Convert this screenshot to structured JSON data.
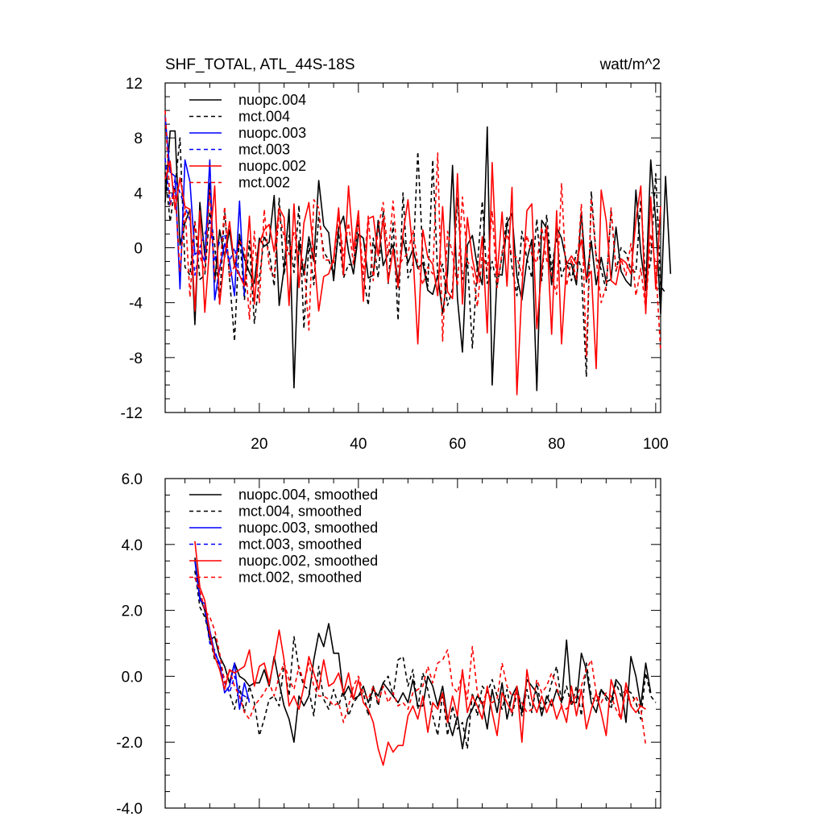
{
  "chart_data": [
    {
      "type": "line",
      "title": "SHF_TOTAL, ATL_44S-18S",
      "units": "watt/m^2",
      "xlabel": "",
      "ylabel": "",
      "xlim": [
        1,
        101
      ],
      "ylim": [
        -12,
        12
      ],
      "x_ticks": [
        20,
        40,
        60,
        80,
        100
      ],
      "x_tick_labels": [
        "20",
        "40",
        "60",
        "80",
        "100"
      ],
      "y_ticks": [
        12,
        8,
        4,
        0,
        -4,
        -8,
        -12
      ],
      "y_tick_labels": [
        "12",
        "8",
        "4",
        "0",
        "-4",
        "-8",
        "-12"
      ],
      "legend_position": "top-left",
      "series": [
        {
          "name": "nuopc.004",
          "color": "#000000",
          "dash": "solid",
          "x_start": 1,
          "values": [
            3.3,
            8.5,
            8.5,
            0.2,
            1.8,
            2.8,
            -5.6,
            3.3,
            -0.6,
            4.7,
            -2.5,
            1.3,
            -0.7,
            1.3,
            -1.4,
            0.8,
            -0.8,
            -1.8,
            -2.6,
            0.7,
            0.1,
            0.4,
            3.8,
            -4.2,
            -1.5,
            2.8,
            -10.2,
            0.5,
            -2.0,
            0.8,
            -1.0,
            4.9,
            1.6,
            1.1,
            -2.4,
            1.4,
            2.3,
            -0.3,
            -1.9,
            1.0,
            0.7,
            -2.2,
            -2.0,
            2.0,
            -1.3,
            -0.4,
            0.2,
            -2.5,
            0.7,
            -1.1,
            -0.1,
            -1.5,
            -1.1,
            -3.1,
            -3.4,
            -2.0,
            -4.8,
            -1.9,
            6.0,
            -3.7,
            -7.6,
            0.2,
            0.9,
            -1.4,
            -2.7,
            8.8,
            -10.0,
            -1.9,
            -2.0,
            1.8,
            2.5,
            -2.1,
            -3.8,
            -0.9,
            0.6,
            -10.4,
            2.0,
            1.4,
            -2.7,
            1.5,
            0.7,
            -1.1,
            -1.2,
            -2.7,
            2.6,
            -2.5,
            0.5,
            -2.7,
            -0.7,
            -2.5,
            -2.3,
            1.5,
            -1.7,
            -2.4,
            -2.8,
            4.2,
            -0.4,
            -3.1,
            6.4,
            2.0,
            -4.8,
            5.2,
            -1.9
          ]
        },
        {
          "name": "mct.004",
          "color": "#000000",
          "dash": "dashed",
          "x_start": 1,
          "values": [
            5.5,
            1.9,
            4.5,
            8.0,
            -1.4,
            -2.0,
            1.9,
            -2.3,
            -2.0,
            2.6,
            0.2,
            -4.1,
            2.8,
            -2.2,
            -6.8,
            1.1,
            -3.8,
            0.5,
            -5.5,
            -2.3,
            0.9,
            -0.3,
            -2.8,
            3.6,
            -2.0,
            0.9,
            -1.8,
            3.1,
            -5.9,
            0.3,
            -2.7,
            2.3,
            -0.3,
            -0.9,
            -1.9,
            1.1,
            -2.2,
            -1.2,
            -1.3,
            2.0,
            -2.1,
            -4.2,
            0.7,
            -2.2,
            2.7,
            -2.6,
            1.8,
            -5.3,
            4.0,
            -2.2,
            -1.2,
            7.0,
            -0.5,
            -2.8,
            6.4,
            -2.0,
            -1.2,
            -4.2,
            -3.0,
            3.6,
            -2.3,
            -0.8,
            -7.3,
            -1.3,
            3.4,
            -2.6,
            -1.0,
            -2.8,
            -0.6,
            2.2,
            -1.4,
            -3.5,
            1.2,
            -0.8,
            -2.2,
            2.1,
            -2.4,
            2.4,
            -1.6,
            0.8,
            -2.1,
            -1.0,
            -2.4,
            -0.2,
            -1.6,
            -9.4,
            4.1,
            -0.6,
            -1.6,
            -3.1,
            2.8,
            -1.7,
            0.0,
            -0.4,
            -1.6,
            -1.8,
            3.5,
            -2.5,
            -1.0,
            5.4,
            -2.8,
            -3.3
          ]
        },
        {
          "name": "nuopc.003",
          "color": "#0000ff",
          "dash": "solid",
          "x_start": 1,
          "values": [
            9.5,
            5.5,
            5.2,
            -3.0,
            6.4,
            4.8,
            -0.5,
            -0.2,
            -1.0,
            6.4,
            -3.8,
            -1.5,
            0.3,
            -1.0,
            -3.5,
            3.4,
            -3.5
          ]
        },
        {
          "name": "mct.003",
          "color": "#0000ff",
          "dash": "dashed",
          "x_start": 1,
          "values": [
            6.5,
            3.0,
            5.0,
            4.0,
            3.0,
            2.0,
            -2.0,
            0.0,
            1.0,
            2.0,
            -1.0,
            0.5,
            1.0,
            -1.0,
            0.0,
            -2.0,
            -2.5
          ]
        },
        {
          "name": "nuopc.002",
          "color": "#ff0000",
          "dash": "solid",
          "x_start": 1,
          "values": [
            5.0,
            6.3,
            2.8,
            5.1,
            3.0,
            2.8,
            -4.6,
            2.7,
            -4.7,
            0.2,
            4.5,
            -4.1,
            -0.6,
            1.9,
            -1.3,
            -2.0,
            -2.8,
            2.3,
            -4.1,
            0.3,
            1.3,
            1.7,
            -0.3,
            2.9,
            2.2,
            -4.2,
            3.2,
            -2.9,
            1.8,
            3.3,
            -0.4,
            -4.6,
            -2.1,
            -1.9,
            -0.8,
            2.9,
            -2.0,
            4.5,
            -0.2,
            2.7,
            -3.9,
            2.1,
            2.3,
            -0.6,
            2.1,
            -2.5,
            -0.1,
            -2.9,
            1.0,
            3.5,
            -0.3,
            -7.0,
            1.3,
            -0.7,
            -1.2,
            -3.5,
            3.0,
            -3.2,
            -3.7,
            5.4,
            -4.1,
            2.2,
            -0.8,
            -2.6,
            0.8,
            -6.2,
            6.2,
            -2.1,
            2.6,
            -2.8,
            4.4,
            -10.7,
            -3.0,
            2.7,
            3.2,
            -5.9,
            -1.5,
            1.5,
            -6.3,
            2.7,
            -7.0,
            -1.2,
            -0.6,
            -1.2,
            0.6,
            -2.3,
            -1.7,
            -8.8,
            4.2,
            2.0,
            -2.4,
            -2.7,
            -0.8,
            -1.1,
            -1.9,
            2.0,
            4.5,
            -4.8,
            3.7,
            -3.0,
            3.0
          ]
        },
        {
          "name": "mct.002",
          "color": "#ff0000",
          "dash": "dashed",
          "x_start": 1,
          "values": [
            10.0,
            3.1,
            4.2,
            -1.7,
            3.0,
            -3.6,
            1.8,
            -0.6,
            -1.7,
            4.2,
            -2.3,
            -1.9,
            3.0,
            -2.2,
            -1.3,
            0.5,
            -0.1,
            -5.2,
            1.2,
            -4.0,
            2.8,
            -1.4,
            -2.1,
            2.6,
            0.8,
            -0.5,
            1.1,
            -0.5,
            -1.0,
            -6.0,
            3.5,
            2.9,
            -0.9,
            -0.9,
            -1.1,
            2.3,
            -0.6,
            1.8,
            -1.2,
            2.1,
            -1.9,
            2.3,
            -2.4,
            1.4,
            3.3,
            -0.6,
            3.4,
            -1.4,
            -0.8,
            -0.4,
            1.3,
            -1.2,
            -2.7,
            -1.4,
            -1.9,
            6.9,
            -6.8,
            1.2,
            -0.5,
            -2.8,
            3.7,
            -1.0,
            -1.5,
            -4.3,
            -0.4,
            -1.6,
            2.7,
            -2.9,
            -0.3,
            1.0,
            -0.6,
            -0.7,
            -2.0,
            0.9,
            -0.5,
            -1.1,
            1.5,
            -0.9,
            -2.0,
            -3.4,
            4.7,
            -2.8,
            -0.8,
            -2.3,
            3.2,
            -7.9,
            3.6,
            -0.8,
            -4.0,
            -2.8,
            2.9,
            -1.6,
            -0.8,
            -2.0,
            0.3,
            -3.5,
            -1.5,
            -4.5,
            1.0,
            -1.3,
            -7.6
          ]
        }
      ]
    },
    {
      "type": "line",
      "title": "",
      "xlabel": "",
      "ylabel": "",
      "xlim": [
        1,
        101
      ],
      "ylim": [
        -4.0,
        6.0
      ],
      "x_ticks": [
        20,
        40,
        60,
        80,
        100
      ],
      "x_tick_labels": [],
      "y_ticks": [
        6.0,
        4.0,
        2.0,
        0.0,
        -2.0,
        -4.0
      ],
      "y_tick_labels": [
        "6.0",
        "4.0",
        "2.0",
        "0.0",
        "-2.0",
        "-4.0"
      ],
      "legend_position": "top-left",
      "series": [
        {
          "name": "nuopc.004, smoothed",
          "color": "#000000",
          "dash": "solid",
          "x_start": 7,
          "values": [
            3.6,
            2.4,
            2.0,
            1.1,
            1.2,
            0.6,
            0.3,
            -0.2,
            0.4,
            0.0,
            -0.1,
            -0.3,
            -0.2,
            -0.2,
            0.2,
            -0.3,
            0.6,
            -0.2,
            -0.9,
            -1.3,
            -2.0,
            -0.6,
            -0.9,
            -0.6,
            0.5,
            1.3,
            0.9,
            1.6,
            0.7,
            0.7,
            -0.6,
            -0.3,
            -0.7,
            -0.6,
            -0.3,
            -0.8,
            -0.4,
            -0.6,
            -0.2,
            -0.4,
            -0.6,
            -0.8,
            -0.5,
            -0.8,
            -0.1,
            -0.9,
            -0.9,
            0.0,
            -0.3,
            -0.9,
            -0.3,
            -1.3,
            -1.8,
            -1.2,
            -2.2,
            -1.3,
            -1.0,
            -0.6,
            -0.8,
            -1.6,
            -0.4,
            -1.1,
            -0.2,
            -1.3,
            -0.6,
            -0.3,
            -1.1,
            -0.1,
            -0.3,
            -0.5,
            -1.2,
            -0.6,
            -0.9,
            -0.4,
            -0.8,
            1.1,
            -0.8,
            -0.8,
            0.7,
            0.2,
            -0.8,
            -1.1,
            -0.4,
            -0.6,
            -0.8,
            -0.1,
            -0.3,
            -1.4,
            0.6,
            0.0,
            -0.9,
            0.4,
            -0.5
          ]
        },
        {
          "name": "mct.004, smoothed",
          "color": "#000000",
          "dash": "dashed",
          "x_start": 7,
          "values": [
            3.2,
            2.1,
            1.8,
            1.2,
            0.5,
            0.4,
            -0.1,
            -0.5,
            -1.0,
            -0.3,
            -1.1,
            -0.3,
            -0.8,
            -1.8,
            -1.3,
            -0.7,
            -0.6,
            -0.9,
            0.4,
            -0.6,
            1.2,
            0.2,
            -0.3,
            -0.4,
            -1.2,
            0.3,
            -0.7,
            -1.0,
            -0.4,
            -0.9,
            -0.4,
            -1.2,
            -0.8,
            -0.6,
            -0.5,
            -1.2,
            -0.3,
            -0.9,
            -0.2,
            0.0,
            -0.6,
            0.5,
            0.6,
            -0.3,
            0.2,
            -1.0,
            0.1,
            -0.4,
            -1.2,
            -1.8,
            -0.5,
            -1.8,
            -0.9,
            -1.6,
            -1.4,
            -2.2,
            -0.5,
            -1.2,
            -0.3,
            -0.5,
            -0.1,
            -0.6,
            -1.0,
            -0.4,
            -1.2,
            -0.5,
            -1.2,
            -0.4,
            -1.1,
            -0.2,
            -1.0,
            -0.8,
            -0.2,
            0.3,
            -0.8,
            -0.3,
            -0.9,
            -0.3,
            -1.2,
            0.4,
            -0.6,
            -0.8,
            -0.4,
            -0.7,
            -1.0,
            -0.2,
            -0.6,
            -0.4,
            -0.5,
            -0.8,
            -1.3,
            0.1,
            -0.6,
            -0.8
          ]
        },
        {
          "name": "nuopc.003, smoothed",
          "color": "#0000ff",
          "dash": "solid",
          "x_start": 7,
          "values": [
            3.5,
            2.3,
            2.2,
            1.4,
            0.7,
            0.4,
            -0.5,
            -0.3,
            0.4,
            -1.0,
            -0.2,
            -0.8
          ]
        },
        {
          "name": "mct.003, smoothed",
          "color": "#0000ff",
          "dash": "dashed",
          "x_start": 7,
          "values": [
            3.0,
            2.5,
            2.0,
            1.0,
            0.8,
            0.3,
            -0.2,
            -0.5,
            0.0,
            -0.5,
            -0.6,
            -0.7
          ]
        },
        {
          "name": "nuopc.002, smoothed",
          "color": "#ff0000",
          "dash": "solid",
          "x_start": 7,
          "values": [
            4.1,
            2.7,
            2.3,
            1.3,
            0.6,
            0.2,
            -0.4,
            0.2,
            0.1,
            0.2,
            0.3,
            0.8,
            -0.3,
            0.3,
            0.4,
            -0.2,
            0.5,
            1.4,
            0.5,
            -0.9,
            -0.6,
            -1.0,
            -0.3,
            0.6,
            0.1,
            -0.4,
            0.5,
            -0.3,
            -0.2,
            0.1,
            -0.5,
            0.1,
            -0.7,
            -0.1,
            -0.8,
            -1.0,
            -1.4,
            -2.2,
            -2.7,
            -2.0,
            -2.3,
            -2.1,
            -2.1,
            -1.2,
            -0.9,
            -1.3,
            -0.6,
            -1.7,
            -0.8,
            -1.0,
            -0.5,
            -1.4,
            -0.6,
            -1.2,
            0.2,
            -1.1,
            -0.6,
            -0.9,
            -1.3,
            -0.3,
            -1.1,
            -1.8,
            -0.5,
            -0.8,
            -1.1,
            -0.3,
            -2.0,
            0.2,
            -0.7,
            -1.1,
            -0.6,
            -1.1,
            -0.7,
            -1.3,
            -0.9,
            -1.4,
            -0.3,
            -1.2,
            -0.4,
            -1.6,
            -1.0,
            -0.5,
            -1.1,
            -1.8,
            -0.1,
            -0.6,
            -1.3,
            -0.2,
            -0.9,
            -1.1,
            -0.9,
            -1.0
          ]
        },
        {
          "name": "mct.002, smoothed",
          "color": "#ff0000",
          "dash": "dashed",
          "x_start": 7,
          "values": [
            3.0,
            2.6,
            2.0,
            1.8,
            1.4,
            0.7,
            -0.2,
            0.2,
            -0.3,
            -0.6,
            -1.1,
            -1.3,
            -0.9,
            -0.7,
            -0.5,
            -0.2,
            -0.6,
            0.0,
            0.4,
            -0.1,
            -0.4,
            0.3,
            -0.2,
            0.4,
            -0.3,
            -0.6,
            -0.6,
            -0.7,
            -0.9,
            -0.8,
            -1.4,
            -0.9,
            -0.3,
            0.0,
            -0.5,
            -0.7,
            -0.3,
            -0.8,
            -0.3,
            -0.8,
            -0.5,
            -0.9,
            -0.8,
            -1.0,
            -0.5,
            -0.4,
            -0.3,
            0.3,
            -0.2,
            0.4,
            0.5,
            0.8,
            -0.3,
            -0.5,
            0.1,
            -0.7,
            0.9,
            -0.5,
            -0.9,
            -0.4,
            -0.8,
            -0.7,
            0.4,
            -0.3,
            -0.6,
            -0.5,
            -0.8,
            -1.1,
            -1.0,
            -0.1,
            -0.5,
            -0.3,
            0.1,
            -0.3,
            -0.9,
            -1.0,
            -0.8,
            -0.6,
            -0.3,
            0.2,
            0.5,
            -0.5,
            -0.8,
            -0.5,
            -0.6,
            -1.0,
            -1.3,
            -0.4,
            -0.9,
            -0.6,
            -1.0,
            -2.1
          ]
        }
      ]
    }
  ]
}
